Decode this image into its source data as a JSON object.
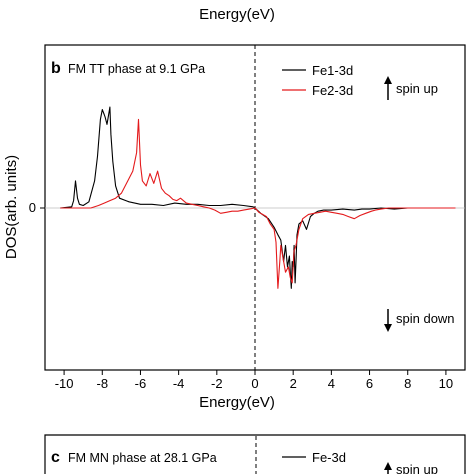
{
  "top_label": "Energy(eV)",
  "chart_data": [
    {
      "type": "line",
      "panel_letter": "b",
      "title": "FM TT phase at 9.1 GPa",
      "xlabel": "Energy(eV)",
      "ylabel": "DOS(arb. units)",
      "xlim": [
        -11,
        11
      ],
      "ylim": [
        -1.0,
        1.0
      ],
      "x_ticks": [
        -10,
        -8,
        -6,
        -4,
        -2,
        0,
        2,
        4,
        6,
        8,
        10
      ],
      "y_ticks": [
        0
      ],
      "fermi_level_x": 0,
      "annotations": {
        "spin_up": "spin up",
        "spin_down": "spin down"
      },
      "series": [
        {
          "name": "Fe1-3d",
          "color": "#000000",
          "x": [
            -10.2,
            -9.6,
            -9.5,
            -9.4,
            -9.3,
            -9.2,
            -9.0,
            -8.7,
            -8.4,
            -8.25,
            -8.1,
            -8.0,
            -7.9,
            -7.85,
            -7.75,
            -7.6,
            -7.55,
            -7.45,
            -7.3,
            -7.1,
            -6.6,
            -6.0,
            -5.4,
            -4.8,
            -4.2,
            -3.6,
            -3.0,
            -2.4,
            -1.8,
            -1.2,
            -0.6,
            -0.1,
            0.0,
            0.3,
            0.7,
            1.0,
            1.2,
            1.35,
            1.5,
            1.6,
            1.7,
            1.8,
            1.85,
            1.9,
            1.95,
            2.0,
            2.05,
            2.1,
            2.15,
            2.2,
            2.3,
            2.5,
            2.7,
            2.9,
            3.1,
            3.3,
            3.6,
            4.0,
            4.6,
            5.2,
            5.6,
            6.0,
            6.6,
            7.3,
            8.0,
            9.0,
            10.5
          ],
          "y": [
            0.0,
            0.01,
            0.06,
            0.22,
            0.08,
            0.03,
            0.02,
            0.05,
            0.22,
            0.42,
            0.72,
            0.8,
            0.76,
            0.74,
            0.68,
            0.82,
            0.6,
            0.38,
            0.18,
            0.08,
            0.05,
            0.03,
            0.03,
            0.02,
            0.04,
            0.03,
            0.03,
            0.02,
            0.02,
            0.03,
            0.02,
            0.01,
            0.0,
            -0.05,
            -0.1,
            -0.18,
            -0.25,
            -0.3,
            -0.5,
            -0.35,
            -0.55,
            -0.45,
            -0.6,
            -0.75,
            -0.5,
            -0.55,
            -0.35,
            -0.7,
            -0.5,
            -0.25,
            -0.15,
            -0.12,
            -0.2,
            -0.08,
            -0.05,
            -0.03,
            -0.02,
            -0.02,
            -0.01,
            -0.02,
            -0.01,
            -0.01,
            0.0,
            -0.01,
            0.0,
            0.0,
            0.0
          ]
        },
        {
          "name": "Fe2-3d",
          "color": "#e41a1c",
          "x": [
            -10.2,
            -8.6,
            -8.2,
            -7.9,
            -7.6,
            -7.3,
            -7.0,
            -6.8,
            -6.6,
            -6.4,
            -6.2,
            -6.1,
            -6.0,
            -5.9,
            -5.7,
            -5.5,
            -5.3,
            -5.1,
            -4.9,
            -4.7,
            -4.5,
            -4.3,
            -4.1,
            -3.9,
            -3.6,
            -3.3,
            -3.0,
            -2.7,
            -2.4,
            -2.1,
            -1.8,
            -1.5,
            -1.2,
            -0.9,
            -0.6,
            -0.3,
            0.0,
            0.2,
            0.4,
            0.6,
            0.8,
            1.0,
            1.1,
            1.2,
            1.3,
            1.35,
            1.45,
            1.6,
            1.75,
            1.85,
            1.95,
            2.05,
            2.15,
            2.3,
            2.5,
            2.8,
            3.1,
            3.4,
            3.7,
            4.0,
            4.3,
            4.6,
            4.9,
            5.2,
            5.5,
            5.8,
            6.1,
            6.3,
            6.6,
            7.0,
            7.5,
            8.0,
            9.0,
            10.5
          ],
          "y": [
            0.0,
            0.0,
            0.02,
            0.04,
            0.06,
            0.08,
            0.12,
            0.18,
            0.24,
            0.3,
            0.45,
            0.72,
            0.35,
            0.22,
            0.18,
            0.28,
            0.2,
            0.3,
            0.16,
            0.12,
            0.1,
            0.07,
            0.06,
            0.08,
            0.04,
            0.03,
            0.02,
            0.01,
            0.0,
            -0.02,
            -0.05,
            -0.04,
            -0.03,
            -0.03,
            -0.02,
            -0.01,
            0.0,
            -0.04,
            -0.06,
            -0.08,
            -0.15,
            -0.2,
            -0.32,
            -0.75,
            -0.5,
            -0.35,
            -0.45,
            -0.6,
            -0.55,
            -0.65,
            -0.7,
            -0.4,
            -0.35,
            -0.2,
            -0.1,
            -0.06,
            -0.05,
            -0.04,
            -0.03,
            -0.04,
            -0.05,
            -0.06,
            -0.08,
            -0.1,
            -0.07,
            -0.05,
            -0.03,
            -0.02,
            -0.01,
            0.0,
            0.0,
            0.0,
            0.0,
            0.0
          ]
        }
      ]
    },
    {
      "type": "line",
      "panel_letter": "c",
      "title": "FM MN phase at 28.1 GPa",
      "annotations": {
        "spin_up": "spin up"
      },
      "series": [
        {
          "name": "Fe-3d",
          "color": "#000000"
        }
      ]
    }
  ]
}
